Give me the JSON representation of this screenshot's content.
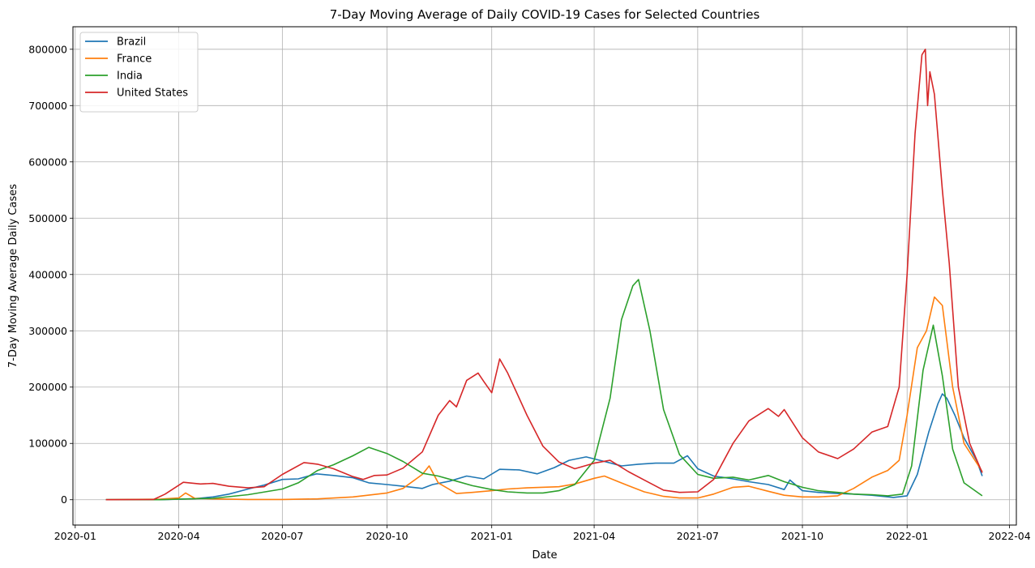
{
  "chart_data": {
    "type": "line",
    "title": "7-Day Moving Average of Daily COVID-19 Cases for Selected Countries",
    "xlabel": "Date",
    "ylabel": "7-Day Moving Average Daily Cases",
    "xlim": [
      "2019-12-30",
      "2022-04-07"
    ],
    "ylim": [
      -45000,
      840000
    ],
    "x_ticks": [
      "2020-01-01",
      "2020-04-01",
      "2020-07-01",
      "2020-10-01",
      "2021-01-01",
      "2021-04-01",
      "2021-07-01",
      "2021-10-01",
      "2022-01-01",
      "2022-04-01"
    ],
    "x_tick_labels": [
      "2020-01",
      "2020-04",
      "2020-07",
      "2020-10",
      "2021-01",
      "2021-04",
      "2021-07",
      "2021-10",
      "2022-01",
      "2022-04"
    ],
    "y_ticks": [
      0,
      100000,
      200000,
      300000,
      400000,
      500000,
      600000,
      700000,
      800000
    ],
    "y_tick_labels": [
      "0",
      "100000",
      "200000",
      "300000",
      "400000",
      "500000",
      "600000",
      "700000",
      "800000"
    ],
    "grid": true,
    "legend_position": "top-left",
    "series": [
      {
        "name": "Brazil",
        "color": "#1f77b4",
        "points": [
          [
            "2020-01-28",
            0
          ],
          [
            "2020-03-15",
            100
          ],
          [
            "2020-04-01",
            900
          ],
          [
            "2020-04-15",
            1900
          ],
          [
            "2020-05-01",
            5000
          ],
          [
            "2020-05-15",
            10000
          ],
          [
            "2020-06-01",
            19000
          ],
          [
            "2020-06-15",
            26000
          ],
          [
            "2020-07-01",
            36000
          ],
          [
            "2020-07-15",
            37000
          ],
          [
            "2020-07-31",
            46000
          ],
          [
            "2020-08-15",
            43000
          ],
          [
            "2020-09-01",
            39000
          ],
          [
            "2020-09-15",
            30000
          ],
          [
            "2020-10-01",
            27000
          ],
          [
            "2020-10-15",
            24000
          ],
          [
            "2020-11-01",
            20000
          ],
          [
            "2020-11-10",
            27000
          ],
          [
            "2020-11-25",
            33000
          ],
          [
            "2020-12-10",
            42000
          ],
          [
            "2020-12-25",
            37000
          ],
          [
            "2021-01-08",
            54000
          ],
          [
            "2021-01-25",
            53000
          ],
          [
            "2021-02-10",
            46000
          ],
          [
            "2021-02-25",
            57000
          ],
          [
            "2021-03-10",
            70000
          ],
          [
            "2021-03-25",
            76000
          ],
          [
            "2021-04-10",
            68000
          ],
          [
            "2021-04-25",
            60000
          ],
          [
            "2021-05-10",
            63000
          ],
          [
            "2021-05-25",
            65000
          ],
          [
            "2021-06-10",
            65000
          ],
          [
            "2021-06-22",
            78000
          ],
          [
            "2021-07-01",
            55000
          ],
          [
            "2021-07-15",
            42000
          ],
          [
            "2021-08-01",
            37000
          ],
          [
            "2021-08-15",
            32000
          ],
          [
            "2021-09-01",
            27000
          ],
          [
            "2021-09-15",
            18000
          ],
          [
            "2021-09-20",
            35000
          ],
          [
            "2021-10-01",
            16000
          ],
          [
            "2021-10-15",
            13000
          ],
          [
            "2021-11-01",
            11000
          ],
          [
            "2021-11-15",
            10000
          ],
          [
            "2021-12-01",
            8000
          ],
          [
            "2021-12-20",
            4000
          ],
          [
            "2022-01-01",
            7000
          ],
          [
            "2022-01-10",
            45000
          ],
          [
            "2022-01-20",
            120000
          ],
          [
            "2022-01-28",
            170000
          ],
          [
            "2022-02-01",
            188000
          ],
          [
            "2022-02-05",
            180000
          ],
          [
            "2022-02-12",
            150000
          ],
          [
            "2022-02-20",
            110000
          ],
          [
            "2022-03-03",
            70000
          ],
          [
            "2022-03-08",
            42000
          ]
        ]
      },
      {
        "name": "France",
        "color": "#ff7f0e",
        "points": [
          [
            "2020-01-28",
            0
          ],
          [
            "2020-03-15",
            1000
          ],
          [
            "2020-04-01",
            3000
          ],
          [
            "2020-04-07",
            12000
          ],
          [
            "2020-04-15",
            2500
          ],
          [
            "2020-05-01",
            1500
          ],
          [
            "2020-06-01",
            500
          ],
          [
            "2020-07-01",
            500
          ],
          [
            "2020-08-01",
            1500
          ],
          [
            "2020-09-01",
            5000
          ],
          [
            "2020-10-01",
            12000
          ],
          [
            "2020-10-15",
            20000
          ],
          [
            "2020-11-01",
            45000
          ],
          [
            "2020-11-07",
            60000
          ],
          [
            "2020-11-15",
            30000
          ],
          [
            "2020-12-01",
            11000
          ],
          [
            "2020-12-15",
            13000
          ],
          [
            "2021-01-01",
            16000
          ],
          [
            "2021-01-15",
            19000
          ],
          [
            "2021-02-01",
            21000
          ],
          [
            "2021-03-01",
            23000
          ],
          [
            "2021-03-15",
            28000
          ],
          [
            "2021-04-01",
            38000
          ],
          [
            "2021-04-10",
            42000
          ],
          [
            "2021-05-01",
            25000
          ],
          [
            "2021-05-15",
            14000
          ],
          [
            "2021-06-01",
            6000
          ],
          [
            "2021-06-15",
            3000
          ],
          [
            "2021-07-01",
            3000
          ],
          [
            "2021-07-15",
            10000
          ],
          [
            "2021-08-01",
            22000
          ],
          [
            "2021-08-15",
            24000
          ],
          [
            "2021-09-01",
            15000
          ],
          [
            "2021-09-15",
            8000
          ],
          [
            "2021-10-01",
            5000
          ],
          [
            "2021-10-15",
            5000
          ],
          [
            "2021-11-01",
            7000
          ],
          [
            "2021-11-15",
            20000
          ],
          [
            "2021-12-01",
            40000
          ],
          [
            "2021-12-15",
            52000
          ],
          [
            "2021-12-25",
            70000
          ],
          [
            "2022-01-01",
            150000
          ],
          [
            "2022-01-10",
            270000
          ],
          [
            "2022-01-18",
            300000
          ],
          [
            "2022-01-25",
            360000
          ],
          [
            "2022-02-01",
            345000
          ],
          [
            "2022-02-10",
            200000
          ],
          [
            "2022-02-20",
            100000
          ],
          [
            "2022-03-08",
            50000
          ]
        ]
      },
      {
        "name": "India",
        "color": "#2ca02c",
        "points": [
          [
            "2020-01-28",
            0
          ],
          [
            "2020-03-15",
            100
          ],
          [
            "2020-04-01",
            1000
          ],
          [
            "2020-05-01",
            2500
          ],
          [
            "2020-06-01",
            9000
          ],
          [
            "2020-07-01",
            19000
          ],
          [
            "2020-07-15",
            30000
          ],
          [
            "2020-08-01",
            52000
          ],
          [
            "2020-08-15",
            62000
          ],
          [
            "2020-09-01",
            78000
          ],
          [
            "2020-09-15",
            93000
          ],
          [
            "2020-10-01",
            82000
          ],
          [
            "2020-10-15",
            68000
          ],
          [
            "2020-11-01",
            47000
          ],
          [
            "2020-11-15",
            42000
          ],
          [
            "2020-12-01",
            33000
          ],
          [
            "2020-12-15",
            25000
          ],
          [
            "2021-01-01",
            18000
          ],
          [
            "2021-01-15",
            14000
          ],
          [
            "2021-02-01",
            12000
          ],
          [
            "2021-02-15",
            12000
          ],
          [
            "2021-03-01",
            16000
          ],
          [
            "2021-03-15",
            27000
          ],
          [
            "2021-04-01",
            70000
          ],
          [
            "2021-04-15",
            180000
          ],
          [
            "2021-04-25",
            320000
          ],
          [
            "2021-05-05",
            380000
          ],
          [
            "2021-05-10",
            391000
          ],
          [
            "2021-05-20",
            300000
          ],
          [
            "2021-06-01",
            160000
          ],
          [
            "2021-06-15",
            80000
          ],
          [
            "2021-07-01",
            45000
          ],
          [
            "2021-07-15",
            38000
          ],
          [
            "2021-08-01",
            40000
          ],
          [
            "2021-08-15",
            35000
          ],
          [
            "2021-09-01",
            43000
          ],
          [
            "2021-09-15",
            32000
          ],
          [
            "2021-10-01",
            22000
          ],
          [
            "2021-10-15",
            16000
          ],
          [
            "2021-11-01",
            13000
          ],
          [
            "2021-11-15",
            10000
          ],
          [
            "2021-12-01",
            9000
          ],
          [
            "2021-12-15",
            7000
          ],
          [
            "2021-12-28",
            10000
          ],
          [
            "2022-01-05",
            60000
          ],
          [
            "2022-01-15",
            230000
          ],
          [
            "2022-01-24",
            310000
          ],
          [
            "2022-02-01",
            220000
          ],
          [
            "2022-02-10",
            90000
          ],
          [
            "2022-02-20",
            30000
          ],
          [
            "2022-03-08",
            7000
          ]
        ]
      },
      {
        "name": "United States",
        "color": "#d62728",
        "points": [
          [
            "2020-01-28",
            0
          ],
          [
            "2020-03-10",
            500
          ],
          [
            "2020-03-20",
            10000
          ],
          [
            "2020-04-05",
            31000
          ],
          [
            "2020-04-20",
            28000
          ],
          [
            "2020-05-01",
            29000
          ],
          [
            "2020-05-15",
            24000
          ],
          [
            "2020-06-01",
            21000
          ],
          [
            "2020-06-15",
            23000
          ],
          [
            "2020-07-01",
            45000
          ],
          [
            "2020-07-20",
            66000
          ],
          [
            "2020-08-01",
            63000
          ],
          [
            "2020-08-15",
            55000
          ],
          [
            "2020-09-01",
            41000
          ],
          [
            "2020-09-10",
            36000
          ],
          [
            "2020-09-20",
            43000
          ],
          [
            "2020-10-01",
            44000
          ],
          [
            "2020-10-15",
            56000
          ],
          [
            "2020-11-01",
            85000
          ],
          [
            "2020-11-15",
            150000
          ],
          [
            "2020-11-25",
            176000
          ],
          [
            "2020-12-01",
            165000
          ],
          [
            "2020-12-10",
            212000
          ],
          [
            "2020-12-20",
            225000
          ],
          [
            "2020-12-25",
            210000
          ],
          [
            "2021-01-01",
            190000
          ],
          [
            "2021-01-08",
            250000
          ],
          [
            "2021-01-15",
            225000
          ],
          [
            "2021-02-01",
            150000
          ],
          [
            "2021-02-15",
            95000
          ],
          [
            "2021-03-01",
            67000
          ],
          [
            "2021-03-15",
            55000
          ],
          [
            "2021-04-01",
            65000
          ],
          [
            "2021-04-15",
            70000
          ],
          [
            "2021-05-01",
            50000
          ],
          [
            "2021-05-15",
            35000
          ],
          [
            "2021-06-01",
            17000
          ],
          [
            "2021-06-15",
            13000
          ],
          [
            "2021-07-01",
            14000
          ],
          [
            "2021-07-15",
            36000
          ],
          [
            "2021-08-01",
            100000
          ],
          [
            "2021-08-15",
            140000
          ],
          [
            "2021-09-01",
            162000
          ],
          [
            "2021-09-10",
            148000
          ],
          [
            "2021-09-15",
            160000
          ],
          [
            "2021-10-01",
            110000
          ],
          [
            "2021-10-15",
            85000
          ],
          [
            "2021-11-01",
            73000
          ],
          [
            "2021-11-15",
            90000
          ],
          [
            "2021-12-01",
            120000
          ],
          [
            "2021-12-15",
            130000
          ],
          [
            "2021-12-25",
            200000
          ],
          [
            "2022-01-01",
            400000
          ],
          [
            "2022-01-08",
            650000
          ],
          [
            "2022-01-14",
            790000
          ],
          [
            "2022-01-17",
            800000
          ],
          [
            "2022-01-19",
            700000
          ],
          [
            "2022-01-21",
            760000
          ],
          [
            "2022-01-25",
            720000
          ],
          [
            "2022-02-01",
            550000
          ],
          [
            "2022-02-07",
            420000
          ],
          [
            "2022-02-15",
            200000
          ],
          [
            "2022-02-25",
            100000
          ],
          [
            "2022-03-08",
            48000
          ]
        ]
      }
    ]
  }
}
